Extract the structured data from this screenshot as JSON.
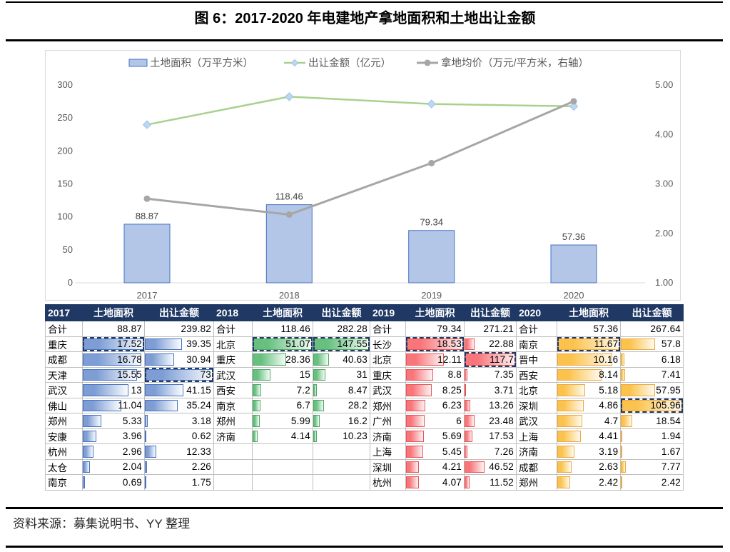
{
  "title": "图 6：2017-2020 年电建地产拿地面积和土地出让金额",
  "source": "资料来源：募集说明书、YY 整理",
  "chart_data": {
    "type": "combo",
    "categories": [
      "2017",
      "2018",
      "2019",
      "2020"
    ],
    "series": [
      {
        "name": "土地面积（万平方米）",
        "type": "bar",
        "axis": "left",
        "values": [
          88.87,
          118.46,
          79.34,
          57.36
        ],
        "labels": [
          "88.87",
          "118.46",
          "79.34",
          "57.36"
        ],
        "fill": "#B4C6E7",
        "border": "#4472C4"
      },
      {
        "name": "出让金额（亿元）",
        "type": "line",
        "axis": "left",
        "values": [
          239.82,
          282.28,
          271.21,
          267.64
        ],
        "color": "#A9D18E",
        "marker": "diamond",
        "marker_fill": "#BDD7EE",
        "marker_border": "#9CC3E5"
      },
      {
        "name": "拿地均价（万元/平方米，右轴）",
        "type": "line",
        "axis": "right",
        "values": [
          2.7,
          2.38,
          3.42,
          4.67
        ],
        "color": "#A6A6A6",
        "marker": "circle",
        "marker_fill": "#A6A6A6"
      }
    ],
    "left_axis": {
      "min": 0,
      "max": 300,
      "step": 50,
      "ticks": [
        "0",
        "50",
        "100",
        "150",
        "200",
        "250",
        "300"
      ]
    },
    "right_axis": {
      "min": 1,
      "max": 5,
      "step": 1,
      "ticks": [
        "1.00",
        "2.00",
        "3.00",
        "4.00",
        "5.00"
      ]
    },
    "legend_position": "top",
    "grid": false
  },
  "table": {
    "headers": {
      "area": "土地面积",
      "amount": "出让金额"
    },
    "total_label": "合计",
    "header_bg": "#1F3864",
    "grid_color": "#BFBFBF",
    "highlight_dash_color": "#1F3864",
    "groups": [
      {
        "year": "2017",
        "theme": {
          "from": "#7D9DD4",
          "to": "#FBFDFF",
          "border": "#4472C4"
        },
        "total": {
          "area": "88.87",
          "amount": "239.82"
        },
        "rows": [
          {
            "city": "重庆",
            "area": "17.52",
            "amount": "39.35",
            "area_dashed": true
          },
          {
            "city": "成都",
            "area": "16.78",
            "amount": "30.94"
          },
          {
            "city": "天津",
            "area": "15.55",
            "amount": "73",
            "amount_dashed": true
          },
          {
            "city": "武汉",
            "area": "13",
            "amount": "41.15"
          },
          {
            "city": "佛山",
            "area": "11.04",
            "amount": "35.24"
          },
          {
            "city": "郑州",
            "area": "5.33",
            "amount": "3.18"
          },
          {
            "city": "安康",
            "area": "3.96",
            "amount": "0.62"
          },
          {
            "city": "杭州",
            "area": "2.96",
            "amount": "12.33"
          },
          {
            "city": "太仓",
            "area": "2.04",
            "amount": "2.26"
          },
          {
            "city": "南京",
            "area": "0.69",
            "amount": "1.75"
          }
        ]
      },
      {
        "year": "2018",
        "theme": {
          "from": "#67C07F",
          "to": "#F4FCF6",
          "border": "#4EA666"
        },
        "total": {
          "area": "118.46",
          "amount": "282.28"
        },
        "rows": [
          {
            "city": "北京",
            "area": "51.07",
            "amount": "147.55",
            "area_dashed": true,
            "amount_dashed": true
          },
          {
            "city": "重庆",
            "area": "28.36",
            "amount": "40.63"
          },
          {
            "city": "武汉",
            "area": "15",
            "amount": "31"
          },
          {
            "city": "西安",
            "area": "7.2",
            "amount": "8.47"
          },
          {
            "city": "南京",
            "area": "6.7",
            "amount": "28.2"
          },
          {
            "city": "郑州",
            "area": "5.99",
            "amount": "16.2"
          },
          {
            "city": "济南",
            "area": "4.14",
            "amount": "10.23"
          }
        ]
      },
      {
        "year": "2019",
        "theme": {
          "from": "#F8767A",
          "to": "#FEF4F4",
          "border": "#EA5458"
        },
        "total": {
          "area": "79.34",
          "amount": "271.21"
        },
        "rows": [
          {
            "city": "长沙",
            "area": "18.53",
            "amount": "22.88",
            "area_dashed": true
          },
          {
            "city": "北京",
            "area": "12.11",
            "amount": "117.7",
            "amount_dashed": true
          },
          {
            "city": "重庆",
            "area": "8.8",
            "amount": "7.35"
          },
          {
            "city": "武汉",
            "area": "8.25",
            "amount": "3.71"
          },
          {
            "city": "郑州",
            "area": "6.23",
            "amount": "13.26"
          },
          {
            "city": "广州",
            "area": "6",
            "amount": "23.48"
          },
          {
            "city": "济南",
            "area": "5.69",
            "amount": "17.53"
          },
          {
            "city": "上海",
            "area": "5.45",
            "amount": "7.26"
          },
          {
            "city": "深圳",
            "area": "4.21",
            "amount": "46.52"
          },
          {
            "city": "杭州",
            "area": "4.07",
            "amount": "11.52"
          }
        ]
      },
      {
        "year": "2020",
        "theme": {
          "from": "#FBC34D",
          "to": "#FEFAF0",
          "border": "#EFA93C"
        },
        "total": {
          "area": "57.36",
          "amount": "267.64"
        },
        "rows": [
          {
            "city": "南京",
            "area": "11.67",
            "amount": "57.8",
            "area_dashed": true
          },
          {
            "city": "晋中",
            "area": "10.16",
            "amount": "6.18"
          },
          {
            "city": "西安",
            "area": "8.14",
            "amount": "7.41"
          },
          {
            "city": "北京",
            "area": "5.18",
            "amount": "57.95"
          },
          {
            "city": "深圳",
            "area": "4.86",
            "amount": "105.96",
            "amount_dashed": true
          },
          {
            "city": "武汉",
            "area": "4.7",
            "amount": "18.54"
          },
          {
            "city": "上海",
            "area": "4.41",
            "amount": "1.94"
          },
          {
            "city": "济南",
            "area": "3.19",
            "amount": "1.67"
          },
          {
            "city": "成都",
            "area": "2.63",
            "amount": "7.77"
          },
          {
            "city": "郑州",
            "area": "2.42",
            "amount": "2.42"
          }
        ]
      }
    ]
  }
}
